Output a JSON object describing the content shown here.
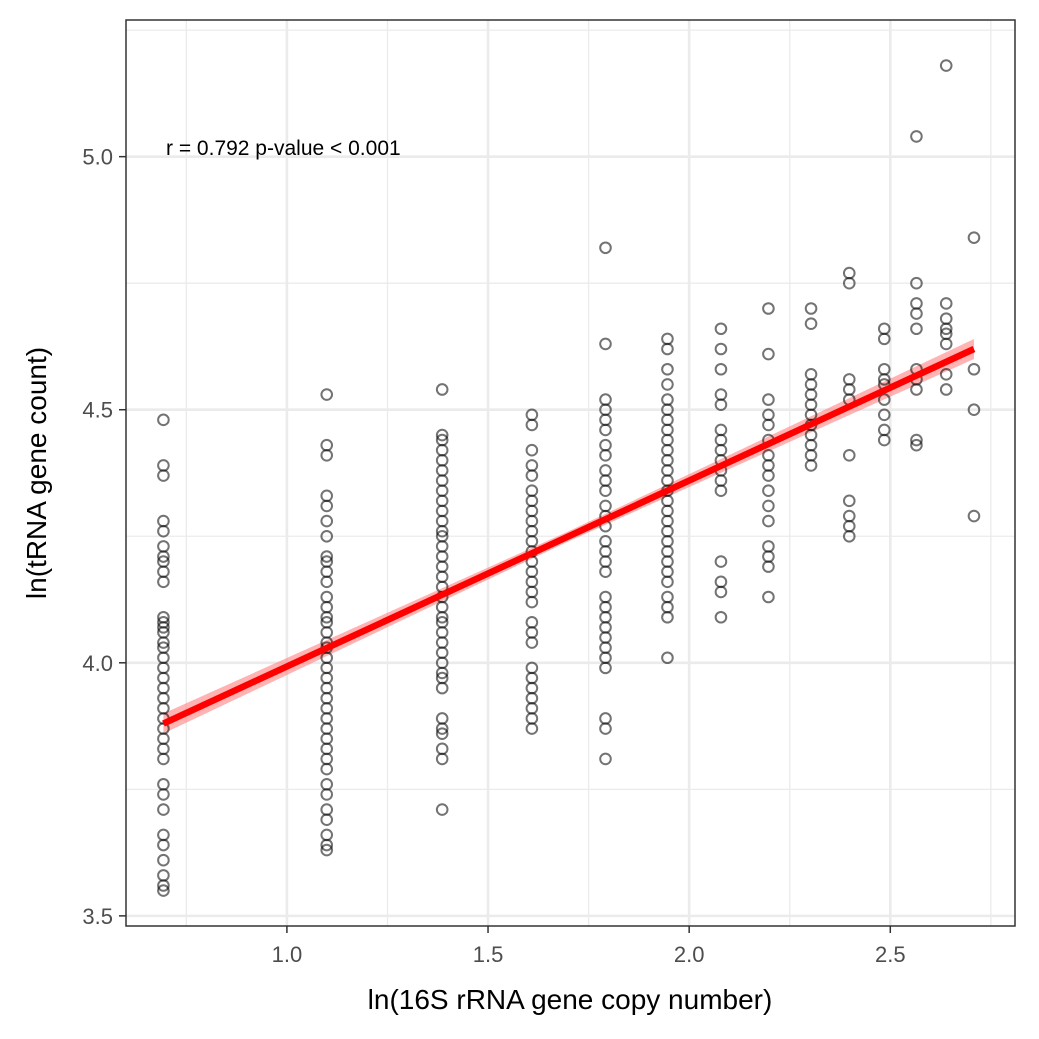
{
  "chart_data": {
    "type": "scatter",
    "xlabel": "ln(16S rRNA gene copy number)",
    "ylabel": "ln(tRNA gene count)",
    "xlim": [
      0.6,
      2.81
    ],
    "ylim": [
      3.48,
      5.27
    ],
    "x_ticks": [
      1.0,
      1.5,
      2.0,
      2.5
    ],
    "x_tick_labels": [
      "1.0",
      "1.5",
      "2.0",
      "2.5"
    ],
    "y_ticks": [
      3.5,
      4.0,
      4.5,
      5.0
    ],
    "y_tick_labels": [
      "3.5",
      "4.0",
      "4.5",
      "5.0"
    ],
    "grid": true,
    "annotation": "r = 0.792  p-value < 0.001",
    "point_color": "#000000",
    "fit_line": {
      "x": [
        0.693,
        2.708
      ],
      "y": [
        3.88,
        4.62
      ],
      "color": "#ff0000",
      "band_color": "#ff8080"
    },
    "series": [
      {
        "x": 0.693,
        "y": [
          4.48,
          4.39,
          4.37,
          4.28,
          4.26,
          4.23,
          4.21,
          4.2,
          4.18,
          4.16,
          4.09,
          4.08,
          4.07,
          4.06,
          4.04,
          4.03,
          4.01,
          3.99,
          3.97,
          3.95,
          3.93,
          3.91,
          3.89,
          3.87,
          3.85,
          3.83,
          3.81,
          3.76,
          3.74,
          3.71,
          3.66,
          3.64,
          3.61,
          3.58,
          3.56,
          3.55
        ]
      },
      {
        "x": 1.099,
        "y": [
          4.53,
          4.43,
          4.41,
          4.33,
          4.31,
          4.28,
          4.25,
          4.21,
          4.2,
          4.18,
          4.16,
          4.13,
          4.11,
          4.09,
          4.08,
          4.06,
          4.04,
          4.03,
          4.01,
          3.99,
          3.97,
          3.95,
          3.93,
          3.91,
          3.89,
          3.87,
          3.85,
          3.83,
          3.81,
          3.79,
          3.76,
          3.74,
          3.71,
          3.69,
          3.66,
          3.64,
          3.63
        ]
      },
      {
        "x": 1.386,
        "y": [
          4.54,
          4.45,
          4.44,
          4.42,
          4.4,
          4.38,
          4.36,
          4.34,
          4.32,
          4.3,
          4.28,
          4.26,
          4.25,
          4.23,
          4.21,
          4.19,
          4.17,
          4.15,
          4.13,
          4.11,
          4.09,
          4.08,
          4.06,
          4.04,
          4.02,
          4.0,
          3.98,
          3.97,
          3.95,
          3.89,
          3.87,
          3.86,
          3.83,
          3.81,
          3.71
        ]
      },
      {
        "x": 1.609,
        "y": [
          4.49,
          4.47,
          4.42,
          4.39,
          4.37,
          4.34,
          4.32,
          4.3,
          4.28,
          4.26,
          4.24,
          4.22,
          4.2,
          4.18,
          4.16,
          4.14,
          4.12,
          4.08,
          4.06,
          4.04,
          3.99,
          3.97,
          3.95,
          3.93,
          3.91,
          3.89,
          3.87
        ]
      },
      {
        "x": 1.792,
        "y": [
          4.82,
          4.63,
          4.52,
          4.5,
          4.48,
          4.46,
          4.43,
          4.41,
          4.38,
          4.36,
          4.34,
          4.31,
          4.29,
          4.27,
          4.24,
          4.22,
          4.2,
          4.18,
          4.13,
          4.11,
          4.09,
          4.07,
          4.05,
          4.03,
          4.01,
          3.99,
          3.89,
          3.87,
          3.81
        ]
      },
      {
        "x": 1.946,
        "y": [
          4.64,
          4.62,
          4.58,
          4.55,
          4.52,
          4.5,
          4.48,
          4.46,
          4.44,
          4.42,
          4.4,
          4.38,
          4.36,
          4.34,
          4.32,
          4.3,
          4.28,
          4.26,
          4.24,
          4.22,
          4.2,
          4.18,
          4.16,
          4.13,
          4.11,
          4.09,
          4.01
        ]
      },
      {
        "x": 2.079,
        "y": [
          4.66,
          4.62,
          4.58,
          4.53,
          4.51,
          4.46,
          4.44,
          4.42,
          4.4,
          4.38,
          4.36,
          4.34,
          4.2,
          4.16,
          4.14,
          4.09
        ]
      },
      {
        "x": 2.197,
        "y": [
          4.7,
          4.61,
          4.52,
          4.49,
          4.47,
          4.44,
          4.41,
          4.39,
          4.37,
          4.34,
          4.31,
          4.28,
          4.23,
          4.21,
          4.19,
          4.13
        ]
      },
      {
        "x": 2.303,
        "y": [
          4.7,
          4.67,
          4.57,
          4.55,
          4.53,
          4.51,
          4.49,
          4.47,
          4.45,
          4.43,
          4.41,
          4.39
        ]
      },
      {
        "x": 2.398,
        "y": [
          4.77,
          4.75,
          4.56,
          4.54,
          4.52,
          4.41,
          4.32,
          4.29,
          4.27,
          4.25
        ]
      },
      {
        "x": 2.485,
        "y": [
          4.66,
          4.64,
          4.58,
          4.56,
          4.55,
          4.52,
          4.49,
          4.46,
          4.44
        ]
      },
      {
        "x": 2.565,
        "y": [
          5.04,
          4.75,
          4.71,
          4.69,
          4.66,
          4.58,
          4.56,
          4.54,
          4.44,
          4.43
        ]
      },
      {
        "x": 2.639,
        "y": [
          5.18,
          4.71,
          4.68,
          4.66,
          4.65,
          4.63,
          4.57,
          4.54
        ]
      },
      {
        "x": 2.708,
        "y": [
          4.84,
          4.58,
          4.5,
          4.29
        ]
      }
    ]
  }
}
